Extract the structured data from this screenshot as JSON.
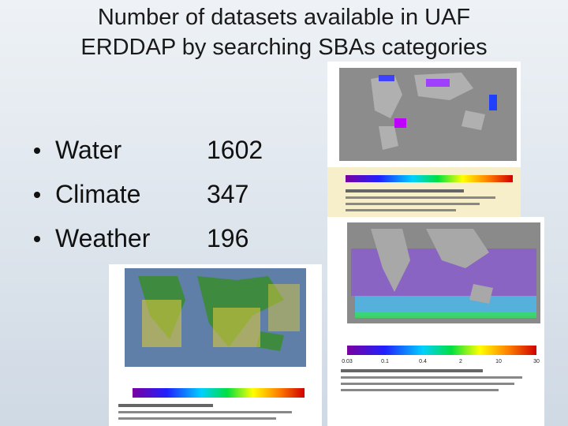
{
  "header": {
    "title_lines": [
      "Number of datasets available in UAF",
      "ERDDAP by searching SBAs categories"
    ]
  },
  "list": {
    "items": [
      {
        "label": "Water",
        "count": 1602
      },
      {
        "label": "Climate",
        "count": 347
      },
      {
        "label": "Weather",
        "count": 196
      }
    ]
  },
  "figures": {
    "chlorophyll_colorbar": [
      "0.03",
      "0.1",
      "0.4",
      "2",
      "10",
      "30"
    ]
  }
}
